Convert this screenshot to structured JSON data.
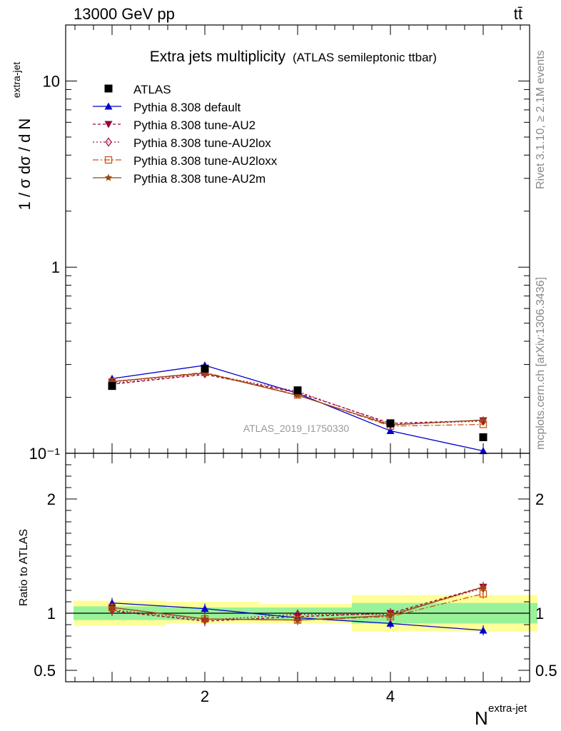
{
  "header": {
    "left": "13000 GeV pp",
    "right": "tt̄"
  },
  "side_text": {
    "rivet": "Rivet 3.1.10, ≥ 2.1M events",
    "mcplots": "mcplots.cern.ch [arXiv:1306.3436]"
  },
  "chart_data": {
    "type": "line",
    "title": "Extra jets multiplicity",
    "subtitle": "(ATLAS semileptonic ttbar)",
    "watermark": "ATLAS_2019_I1750330",
    "xlabel": "N",
    "xlabel_sup": "extra-jet",
    "ylabel_main": "1 / σ dσ / d N",
    "ylabel_main_sup": "extra-jet",
    "ylabel_ratio": "Ratio to ATLAS",
    "x": [
      1,
      2,
      3,
      4,
      5
    ],
    "xlim": [
      0.5,
      5.5
    ],
    "x_ticks": [
      "2",
      "4"
    ],
    "main_scale": "log",
    "main_ylim": [
      0.1,
      20
    ],
    "main_y_ticks": [
      "10⁻¹",
      "1",
      "10"
    ],
    "ratio_ylim": [
      0.4,
      2.4
    ],
    "ratio_y_ticks": [
      "0.5",
      "1",
      "2"
    ],
    "data": {
      "name": "ATLAS",
      "values": [
        0.23,
        0.285,
        0.218,
        0.145,
        0.122
      ],
      "color": "#000000"
    },
    "band_edges": [
      0.5,
      1.5,
      2.5,
      3.5,
      5.5
    ],
    "bands": {
      "inner": [
        [
          0.94,
          1.06
        ],
        [
          0.94,
          1.05
        ],
        [
          0.94,
          1.05
        ],
        [
          0.91,
          1.09
        ]
      ],
      "outer": [
        [
          0.89,
          1.11
        ],
        [
          0.91,
          1.1
        ],
        [
          0.91,
          1.08
        ],
        [
          0.84,
          1.16
        ]
      ],
      "inner_color": "#99f299",
      "outer_color": "#ffff99"
    },
    "series": [
      {
        "name": "Pythia 8.308 default",
        "values": [
          0.252,
          0.297,
          0.21,
          0.132,
          0.103
        ],
        "ratio": [
          1.09,
          1.04,
          0.96,
          0.91,
          0.85
        ],
        "color": "#0000cc",
        "marker": "triangle-up",
        "dash": ""
      },
      {
        "name": "Pythia 8.308 tune-AU2",
        "values": [
          0.235,
          0.265,
          0.212,
          0.145,
          0.15
        ],
        "ratio": [
          1.02,
          0.93,
          0.97,
          1.0,
          1.23
        ],
        "color": "#990033",
        "marker": "triangle-down",
        "dash": "4,3"
      },
      {
        "name": "Pythia 8.308 tune-AU2lox",
        "values": [
          0.238,
          0.268,
          0.215,
          0.143,
          0.149
        ],
        "ratio": [
          1.03,
          0.94,
          0.99,
          0.99,
          1.22
        ],
        "color": "#aa1144",
        "marker": "diamond-open",
        "dash": "2,3"
      },
      {
        "name": "Pythia 8.308 tune-AU2loxx",
        "values": [
          0.242,
          0.272,
          0.206,
          0.14,
          0.143
        ],
        "ratio": [
          1.05,
          0.95,
          0.94,
          0.97,
          1.17
        ],
        "color": "#cc5511",
        "marker": "square-open",
        "dash": "8,3,2,3"
      },
      {
        "name": "Pythia 8.308 tune-AU2m",
        "values": [
          0.243,
          0.27,
          0.205,
          0.142,
          0.151
        ],
        "ratio": [
          1.05,
          0.95,
          0.94,
          0.98,
          1.23
        ],
        "color": "#994411",
        "marker": "star",
        "dash": ""
      }
    ],
    "legend_position": "top-left"
  }
}
